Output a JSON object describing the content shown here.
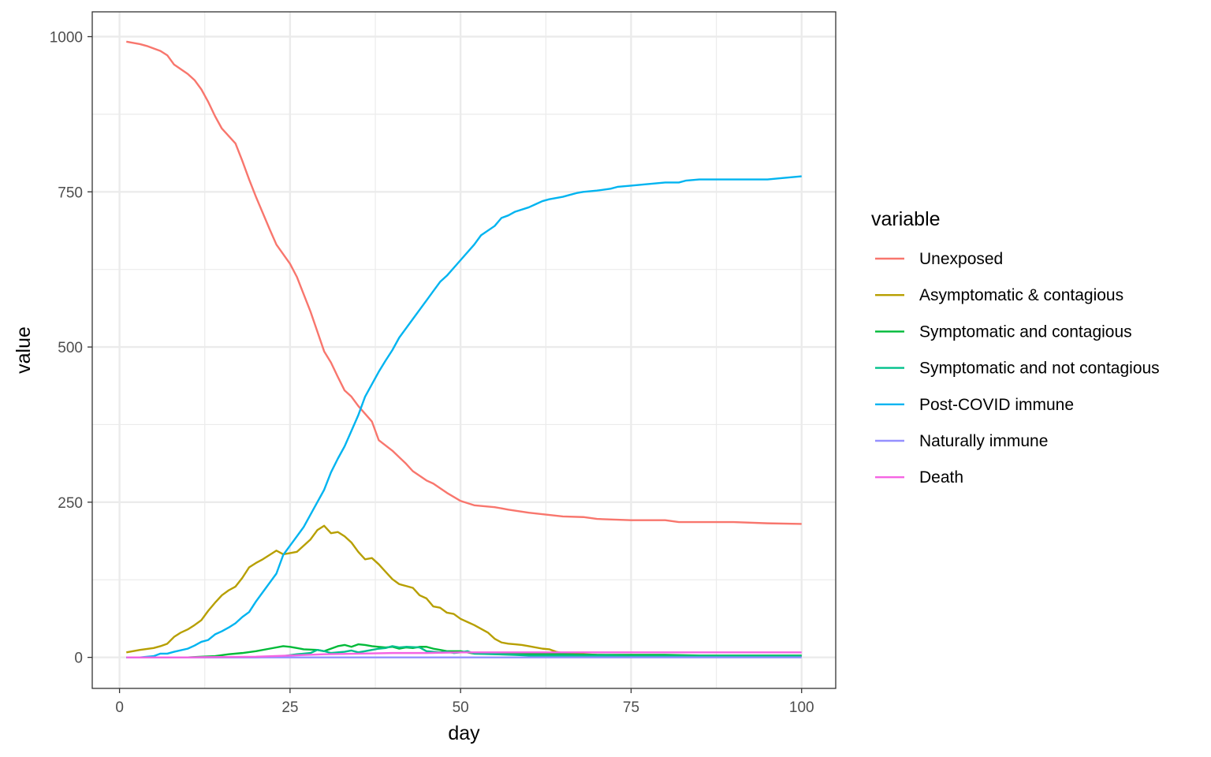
{
  "chart_data": {
    "type": "line",
    "xlabel": "day",
    "ylabel": "value",
    "xlim": [
      -4,
      105
    ],
    "ylim": [
      -50,
      1040
    ],
    "x_ticks": [
      0,
      25,
      50,
      75,
      100
    ],
    "y_ticks": [
      0,
      250,
      500,
      750,
      1000
    ],
    "x_minor": [
      12.5,
      37.5,
      62.5,
      87.5
    ],
    "y_minor": [
      125,
      375,
      625,
      875
    ],
    "grid": true,
    "legend": {
      "title": "variable",
      "placement": "right"
    },
    "series": [
      {
        "name": "Unexposed",
        "color": "#F8766D",
        "x": [
          1,
          3,
          4,
          6,
          7,
          8,
          10,
          11,
          12,
          13,
          14,
          15,
          17,
          18,
          19,
          20,
          22,
          23,
          25,
          26,
          28,
          29,
          30,
          31,
          32,
          33,
          34,
          35,
          37,
          38,
          40,
          42,
          43,
          45,
          46,
          48,
          50,
          52,
          55,
          57,
          60,
          65,
          68,
          70,
          75,
          78,
          80,
          82,
          85,
          90,
          95,
          100
        ],
        "values": [
          992,
          988,
          985,
          977,
          970,
          955,
          940,
          930,
          915,
          895,
          872,
          852,
          828,
          800,
          770,
          742,
          690,
          665,
          634,
          613,
          557,
          525,
          493,
          475,
          452,
          430,
          420,
          405,
          380,
          350,
          333,
          312,
          300,
          285,
          280,
          265,
          252,
          245,
          242,
          238,
          233,
          227,
          226,
          223,
          221,
          221,
          221,
          218,
          218,
          218,
          216,
          215
        ]
      },
      {
        "name": "Asymptomatic & contagious",
        "color": "#B79F00",
        "x": [
          1,
          3,
          5,
          6,
          7,
          8,
          9,
          10,
          11,
          12,
          13,
          14,
          15,
          16,
          17,
          18,
          19,
          20,
          21,
          22,
          23,
          24,
          25,
          26,
          27,
          28,
          29,
          30,
          31,
          32,
          33,
          34,
          35,
          36,
          37,
          38,
          39,
          40,
          41,
          42,
          43,
          44,
          45,
          46,
          47,
          48,
          49,
          50,
          51,
          52,
          53,
          54,
          55,
          56,
          57,
          58,
          59,
          60,
          62,
          63,
          64,
          65,
          66,
          70,
          75,
          80,
          85,
          90,
          100
        ],
        "values": [
          8,
          12,
          15,
          18,
          22,
          33,
          40,
          45,
          52,
          60,
          75,
          88,
          100,
          108,
          114,
          128,
          145,
          152,
          158,
          165,
          172,
          166,
          168,
          170,
          180,
          190,
          205,
          212,
          200,
          202,
          195,
          185,
          170,
          158,
          160,
          150,
          138,
          126,
          118,
          115,
          112,
          100,
          95,
          82,
          80,
          72,
          70,
          62,
          57,
          52,
          46,
          40,
          30,
          24,
          22,
          21,
          20,
          18,
          14,
          13,
          9,
          7,
          6,
          4,
          3,
          3,
          2,
          2,
          2
        ]
      },
      {
        "name": "Symptomatic and contagious",
        "color": "#00BA38",
        "x": [
          1,
          10,
          12,
          14,
          16,
          18,
          20,
          22,
          24,
          25,
          26,
          27,
          29,
          30,
          31,
          32,
          33,
          34,
          35,
          36,
          37,
          38,
          39,
          40,
          41,
          42,
          43,
          44,
          45,
          46,
          47,
          48,
          50,
          52,
          55,
          60,
          65,
          70,
          75,
          80,
          85,
          90,
          95,
          100
        ],
        "values": [
          0,
          0,
          1,
          2,
          5,
          7,
          10,
          14,
          18,
          17,
          15,
          13,
          12,
          10,
          14,
          18,
          20,
          17,
          21,
          20,
          18,
          17,
          16,
          17,
          14,
          16,
          15,
          17,
          17,
          14,
          12,
          10,
          10,
          6,
          6,
          5,
          5,
          4,
          4,
          4,
          3,
          3,
          3,
          3
        ]
      },
      {
        "name": "Symptomatic and not contagious",
        "color": "#00C08B",
        "x": [
          1,
          20,
          24,
          26,
          28,
          29,
          30,
          31,
          33,
          34,
          35,
          36,
          37,
          38,
          39,
          40,
          41,
          42,
          44,
          45,
          47,
          48,
          49,
          50,
          51,
          52,
          55,
          58,
          60,
          65,
          70,
          75,
          80,
          85,
          90,
          100
        ],
        "values": [
          0,
          0,
          2,
          5,
          7,
          12,
          10,
          7,
          9,
          11,
          8,
          10,
          12,
          14,
          15,
          18,
          16,
          17,
          16,
          10,
          8,
          9,
          7,
          8,
          10,
          6,
          5,
          4,
          3,
          3,
          3,
          2,
          2,
          2,
          2,
          2
        ]
      },
      {
        "name": "Post-COVID immune",
        "color": "#00B4F0",
        "x": [
          1,
          3,
          5,
          6,
          7,
          8,
          10,
          11,
          12,
          13,
          14,
          15,
          16,
          17,
          18,
          19,
          20,
          21,
          22,
          23,
          24,
          25,
          26,
          27,
          28,
          29,
          30,
          31,
          32,
          33,
          34,
          35,
          36,
          37,
          38,
          39,
          40,
          41,
          42,
          43,
          44,
          45,
          46,
          47,
          48,
          50,
          52,
          53,
          55,
          56,
          57,
          58,
          60,
          61,
          62,
          63,
          65,
          66,
          67,
          68,
          70,
          72,
          73,
          75,
          77,
          80,
          82,
          83,
          85,
          90,
          95,
          97,
          100
        ],
        "values": [
          0,
          0,
          2,
          6,
          6,
          9,
          14,
          19,
          25,
          28,
          37,
          42,
          48,
          55,
          65,
          73,
          90,
          105,
          120,
          135,
          165,
          180,
          195,
          210,
          230,
          250,
          270,
          298,
          320,
          340,
          365,
          390,
          420,
          440,
          460,
          478,
          495,
          515,
          530,
          545,
          560,
          575,
          590,
          605,
          615,
          640,
          665,
          680,
          695,
          708,
          712,
          718,
          725,
          730,
          735,
          738,
          742,
          745,
          748,
          750,
          752,
          755,
          758,
          760,
          762,
          765,
          765,
          768,
          770,
          770,
          770,
          772,
          775
        ]
      },
      {
        "name": "Naturally immune",
        "color": "#9590FF",
        "x": [
          1,
          100
        ],
        "values": [
          0,
          0
        ]
      },
      {
        "name": "Death",
        "color": "#F564E3",
        "x": [
          1,
          10,
          20,
          25,
          30,
          35,
          40,
          45,
          50,
          60,
          70,
          80,
          90,
          100
        ],
        "values": [
          0,
          0,
          1,
          3,
          5,
          6,
          7,
          7,
          8,
          8,
          8,
          8,
          8,
          8
        ]
      }
    ]
  }
}
